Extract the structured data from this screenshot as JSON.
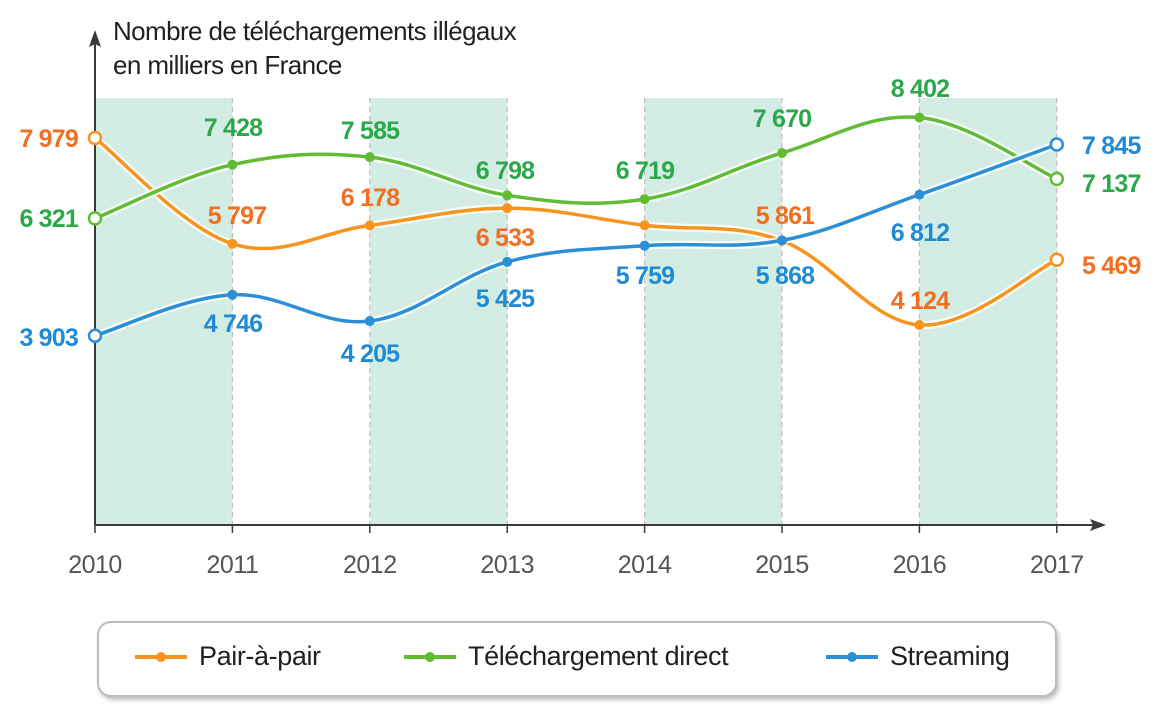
{
  "chart_data": {
    "type": "line",
    "title": "Nombre de téléchargements illégaux en milliers en France",
    "title_lines": [
      "Nombre de téléchargements illégaux",
      "en milliers en France"
    ],
    "xlabel": "",
    "ylabel": "",
    "categories": [
      "2010",
      "2011",
      "2012",
      "2013",
      "2014",
      "2015",
      "2016",
      "2017"
    ],
    "ylim": [
      0,
      9800
    ],
    "grid": false,
    "shaded_bands": [
      [
        "2010",
        "2011"
      ],
      [
        "2012",
        "2013"
      ],
      [
        "2014",
        "2015"
      ],
      [
        "2016",
        "2017"
      ]
    ],
    "legend_position": "bottom",
    "series": [
      {
        "name": "Pair-à-pair",
        "color": "#f7941d",
        "label_color": "#f26f21",
        "values": [
          7979,
          5797,
          6178,
          6533,
          6180,
          5861,
          4124,
          5469
        ],
        "labels": [
          "7 979",
          "5 797",
          "6 178",
          "6 533",
          "",
          "5 861",
          "4 124",
          "5 469"
        ]
      },
      {
        "name": "Téléchargement direct",
        "color": "#62bb35",
        "label_color": "#2aa84a",
        "values": [
          6321,
          7428,
          7585,
          6798,
          6719,
          7670,
          8402,
          7137
        ],
        "labels": [
          "6 321",
          "7 428",
          "7 585",
          "6 798",
          "6 719",
          "7 670",
          "8 402",
          "7 137"
        ]
      },
      {
        "name": "Streaming",
        "color": "#2b8fd6",
        "label_color": "#1e8bd4",
        "values": [
          3903,
          4746,
          4205,
          5425,
          5759,
          5868,
          6812,
          7845
        ],
        "labels": [
          "3 903",
          "4 746",
          "4 205",
          "5 425",
          "5 759",
          "5 868",
          "6 812",
          "7 845"
        ]
      }
    ]
  }
}
